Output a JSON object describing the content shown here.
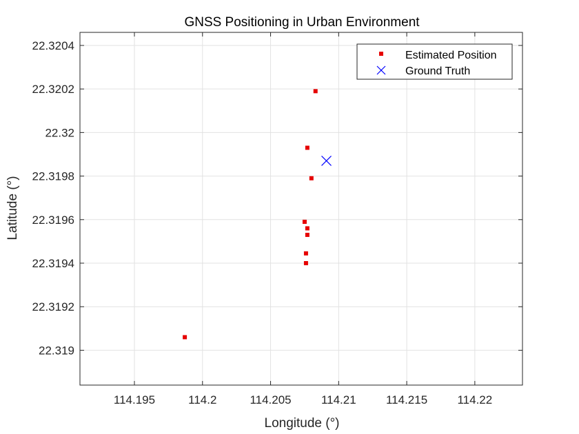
{
  "chart_data": {
    "type": "scatter",
    "title": "GNSS Positioning in Urban Environment",
    "xlabel": "Longitude (°)",
    "ylabel": "Latitude (°)",
    "xlim": [
      114.191,
      114.2235
    ],
    "ylim": [
      22.31884,
      22.32046
    ],
    "xticks": [
      114.195,
      114.2,
      114.205,
      114.21,
      114.215,
      114.22
    ],
    "xtick_labels": [
      "114.195",
      "114.2",
      "114.205",
      "114.21",
      "114.215",
      "114.22"
    ],
    "yticks": [
      22.319,
      22.3192,
      22.3194,
      22.3196,
      22.3198,
      22.32,
      22.3202,
      22.3204
    ],
    "ytick_labels": [
      "22.319",
      "22.3192",
      "22.3194",
      "22.3196",
      "22.3198",
      "22.32",
      "22.3202",
      "22.3204"
    ],
    "grid": true,
    "legend_position": "top-right",
    "series": [
      {
        "name": "Estimated Position",
        "marker": "square",
        "color": "#e60000",
        "points": [
          {
            "x": 114.2083,
            "y": 22.32019
          },
          {
            "x": 114.2077,
            "y": 22.31993
          },
          {
            "x": 114.208,
            "y": 22.31979
          },
          {
            "x": 114.2075,
            "y": 22.31959
          },
          {
            "x": 114.2077,
            "y": 22.31956
          },
          {
            "x": 114.2077,
            "y": 22.31953
          },
          {
            "x": 114.2076,
            "y": 22.319445
          },
          {
            "x": 114.2076,
            "y": 22.3194
          },
          {
            "x": 114.1987,
            "y": 22.31906
          }
        ]
      },
      {
        "name": "Ground Truth",
        "marker": "x",
        "color": "#0000ff",
        "points": [
          {
            "x": 114.2091,
            "y": 22.31987
          }
        ]
      }
    ]
  }
}
